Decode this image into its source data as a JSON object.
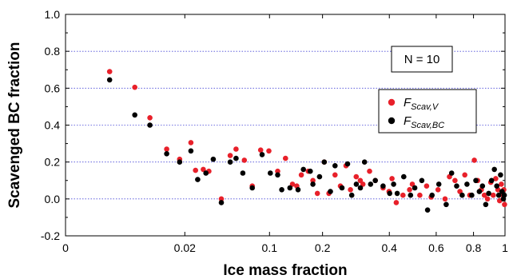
{
  "chart_data": {
    "type": "scatter",
    "xlabel": "Ice mass fraction",
    "ylabel": "Scavenged BC fraction",
    "xlim": [
      0,
      1
    ],
    "ylim": [
      -0.2,
      1.0
    ],
    "x_scale": "cube-root",
    "x_ticks": [
      0,
      0.02,
      0.1,
      0.2,
      0.4,
      0.6,
      0.8,
      1
    ],
    "x_tick_labels": [
      "0",
      "0.02",
      "0.1",
      "0.2",
      "0.4",
      "0.6",
      "0.8",
      "1"
    ],
    "y_ticks": [
      -0.2,
      0.0,
      0.2,
      0.4,
      0.6,
      0.8,
      1.0
    ],
    "y_tick_labels": [
      "-0.2",
      "0.0",
      "0.2",
      "0.4",
      "0.6",
      "0.8",
      "1.0"
    ],
    "grid": "horizontal dotted",
    "grid_color": "#4a4ad8",
    "annotation": "N = 10",
    "legend": {
      "position": "top-right",
      "entries": [
        {
          "base": "F",
          "subscript": "Scav,V",
          "color": "#e8202a"
        },
        {
          "base": "F",
          "subscript": "Scav,BC",
          "color": "#000000"
        }
      ]
    },
    "series": [
      {
        "name": "F_Scav,V",
        "color": "#e8202a",
        "points": [
          [
            0.00101,
            0.69
          ],
          [
            0.00392,
            0.605
          ],
          [
            0.00708,
            0.44
          ],
          [
            0.0122,
            0.27
          ],
          [
            0.0175,
            0.215
          ],
          [
            0.0232,
            0.305
          ],
          [
            0.0259,
            0.155
          ],
          [
            0.0308,
            0.16
          ],
          [
            0.0347,
            0.15
          ],
          [
            0.0446,
            0.0
          ],
          [
            0.0526,
            0.235
          ],
          [
            0.0584,
            0.27
          ],
          [
            0.0674,
            0.21
          ],
          [
            0.0767,
            0.07
          ],
          [
            0.0875,
            0.265
          ],
          [
            0.0991,
            0.26
          ],
          [
            0.1125,
            0.15
          ],
          [
            0.1254,
            0.22
          ],
          [
            0.1377,
            0.08
          ],
          [
            0.1457,
            0.07
          ],
          [
            0.1544,
            0.13
          ],
          [
            0.1686,
            0.15
          ],
          [
            0.1783,
            0.1
          ],
          [
            0.1883,
            0.03
          ],
          [
            0.2041,
            0.2
          ],
          [
            0.2152,
            0.03
          ],
          [
            0.2307,
            0.13
          ],
          [
            0.2446,
            0.07
          ],
          [
            0.26,
            0.18
          ],
          [
            0.2726,
            0.05
          ],
          [
            0.2894,
            0.12
          ],
          [
            0.3017,
            0.1
          ],
          [
            0.31,
            0.08
          ],
          [
            0.331,
            0.15
          ],
          [
            0.3502,
            0.1
          ],
          [
            0.3771,
            0.06
          ],
          [
            0.399,
            0.04
          ],
          [
            0.41,
            0.11
          ],
          [
            0.4263,
            -0.02
          ],
          [
            0.4527,
            0.02
          ],
          [
            0.48,
            0.05
          ],
          [
            0.4913,
            0.08
          ],
          [
            0.524,
            0.02
          ],
          [
            0.5545,
            0.07
          ],
          [
            0.576,
            0.01
          ],
          [
            0.609,
            0.05
          ],
          [
            0.644,
            0.0
          ],
          [
            0.667,
            0.12
          ],
          [
            0.696,
            0.1
          ],
          [
            0.723,
            0.04
          ],
          [
            0.75,
            0.13
          ],
          [
            0.778,
            0.02
          ],
          [
            0.805,
            0.21
          ],
          [
            0.825,
            0.1
          ],
          [
            0.847,
            0.05
          ],
          [
            0.866,
            0.02
          ],
          [
            0.885,
            0.0
          ],
          [
            0.906,
            0.09
          ],
          [
            0.922,
            0.02
          ],
          [
            0.938,
            0.11
          ],
          [
            0.952,
            0.05
          ],
          [
            0.964,
            -0.01
          ],
          [
            0.975,
            0.08
          ],
          [
            0.984,
            0.02
          ],
          [
            0.992,
            0.05
          ],
          [
            0.997,
            -0.03
          ]
        ]
      },
      {
        "name": "F_Scav,BC",
        "color": "#000000",
        "points": [
          [
            0.00101,
            0.645
          ],
          [
            0.00392,
            0.455
          ],
          [
            0.00708,
            0.4
          ],
          [
            0.0122,
            0.245
          ],
          [
            0.0175,
            0.2
          ],
          [
            0.0232,
            0.26
          ],
          [
            0.0272,
            0.105
          ],
          [
            0.0326,
            0.14
          ],
          [
            0.038,
            0.215
          ],
          [
            0.0446,
            -0.02
          ],
          [
            0.0526,
            0.2
          ],
          [
            0.0584,
            0.22
          ],
          [
            0.0657,
            0.14
          ],
          [
            0.0767,
            0.06
          ],
          [
            0.0895,
            0.24
          ],
          [
            0.1012,
            0.14
          ],
          [
            0.1125,
            0.13
          ],
          [
            0.1191,
            0.05
          ],
          [
            0.1331,
            0.06
          ],
          [
            0.1481,
            0.05
          ],
          [
            0.1586,
            0.16
          ],
          [
            0.1728,
            0.15
          ],
          [
            0.1783,
            0.08
          ],
          [
            0.1931,
            0.12
          ],
          [
            0.2041,
            0.2
          ],
          [
            0.219,
            0.04
          ],
          [
            0.2307,
            0.18
          ],
          [
            0.2489,
            0.06
          ],
          [
            0.2644,
            0.19
          ],
          [
            0.2763,
            0.02
          ],
          [
            0.2896,
            0.08
          ],
          [
            0.302,
            0.06
          ],
          [
            0.315,
            0.2
          ],
          [
            0.3346,
            0.08
          ],
          [
            0.3502,
            0.1
          ],
          [
            0.3771,
            0.07
          ],
          [
            0.4015,
            0.03
          ],
          [
            0.416,
            0.08
          ],
          [
            0.43,
            0.03
          ],
          [
            0.456,
            0.12
          ],
          [
            0.484,
            0.02
          ],
          [
            0.502,
            0.06
          ],
          [
            0.533,
            0.1
          ],
          [
            0.559,
            -0.06
          ],
          [
            0.58,
            0.02
          ],
          [
            0.613,
            0.08
          ],
          [
            0.65,
            -0.03
          ],
          [
            0.678,
            0.14
          ],
          [
            0.705,
            0.07
          ],
          [
            0.735,
            0.02
          ],
          [
            0.762,
            0.08
          ],
          [
            0.79,
            0.02
          ],
          [
            0.814,
            0.1
          ],
          [
            0.835,
            0.04
          ],
          [
            0.854,
            0.07
          ],
          [
            0.874,
            -0.03
          ],
          [
            0.893,
            0.03
          ],
          [
            0.911,
            0.1
          ],
          [
            0.929,
            0.16
          ],
          [
            0.945,
            0.07
          ],
          [
            0.958,
            0.02
          ],
          [
            0.97,
            0.13
          ],
          [
            0.98,
            0.04
          ],
          [
            0.989,
            0.0
          ],
          [
            0.995,
            0.02
          ]
        ]
      }
    ]
  }
}
